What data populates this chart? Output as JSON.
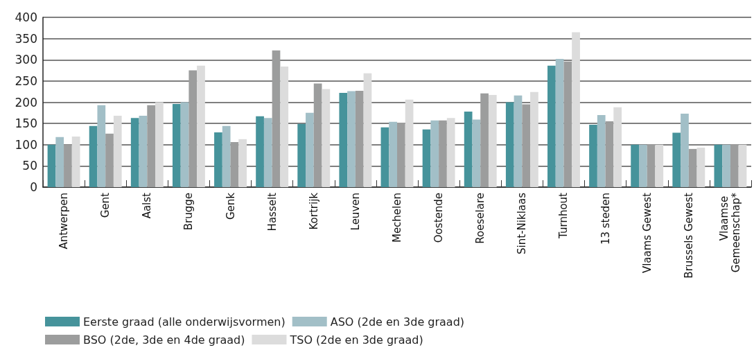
{
  "chart_data": {
    "type": "bar",
    "categories": [
      "Antwerpen",
      "Gent",
      "Aalst",
      "Brugge",
      "Genk",
      "Hasselt",
      "Kortrijk",
      "Leuven",
      "Mechelen",
      "Oostende",
      "Roeselare",
      "Sint-Niklaas",
      "Turnhout",
      "13 steden",
      "Vlaams Gewest",
      "Brussels Gewest",
      "Vlaamse Gemeenschap*"
    ],
    "series": [
      {
        "name": "Eerste graad (alle onderwijsvormen)",
        "color": "#46939b",
        "values": [
          100,
          144,
          163,
          196,
          129,
          167,
          149,
          222,
          141,
          136,
          178,
          200,
          286,
          147,
          100,
          128,
          100
        ]
      },
      {
        "name": "ASO (2de en 3de graad)",
        "color": "#a2bfc7",
        "values": [
          118,
          193,
          168,
          200,
          144,
          163,
          175,
          226,
          154,
          157,
          159,
          216,
          302,
          170,
          100,
          173,
          100
        ]
      },
      {
        "name": "BSO (2de, 3de en 4de graad)",
        "color": "#9c9d9d",
        "values": [
          100,
          126,
          193,
          275,
          106,
          322,
          244,
          227,
          152,
          157,
          221,
          195,
          296,
          155,
          101,
          90,
          101
        ]
      },
      {
        "name": "TSO (2de en 3de graad)",
        "color": "#dcdcdc",
        "values": [
          119,
          168,
          200,
          286,
          113,
          284,
          231,
          268,
          206,
          163,
          217,
          224,
          365,
          188,
          100,
          93,
          100
        ]
      }
    ],
    "ylim": [
      0,
      400
    ],
    "yticks": [
      0,
      50,
      100,
      150,
      200,
      250,
      300,
      350,
      400
    ],
    "grid": "y",
    "legend": "bottom"
  }
}
